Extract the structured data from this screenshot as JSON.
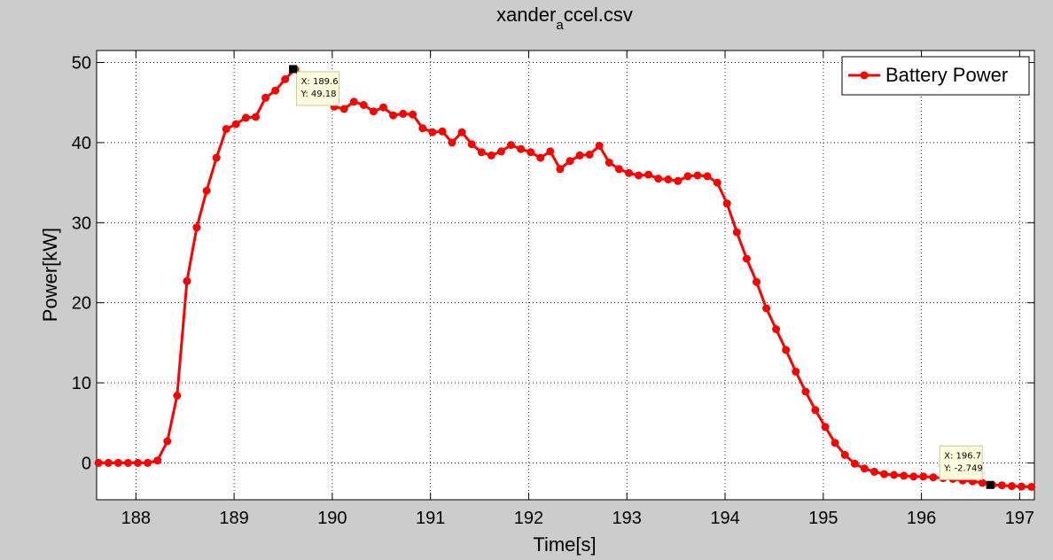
{
  "chart_data": {
    "type": "line",
    "title_main": "xander",
    "title_sub": "a",
    "title_tail": "ccel.csv",
    "xlabel": "Time[s]",
    "ylabel": "Power[kW]",
    "xlim": [
      187.6,
      197.15
    ],
    "ylim": [
      -4.6,
      51.5
    ],
    "xticks": [
      "188",
      "189",
      "190",
      "191",
      "192",
      "193",
      "194",
      "195",
      "196",
      "197"
    ],
    "yticks": [
      "0",
      "10",
      "20",
      "30",
      "40",
      "50"
    ],
    "grid": true,
    "legend_position": "top-right",
    "series": [
      {
        "name": "Battery Power",
        "color": "#ff0000",
        "x": [
          187.62,
          187.72,
          187.82,
          187.92,
          188.02,
          188.12,
          188.22,
          188.32,
          188.42,
          188.52,
          188.62,
          188.72,
          188.82,
          188.92,
          189.02,
          189.12,
          189.22,
          189.32,
          189.42,
          189.52,
          189.62,
          189.72,
          189.82,
          189.92,
          190.02,
          190.12,
          190.22,
          190.32,
          190.42,
          190.52,
          190.62,
          190.72,
          190.82,
          190.92,
          191.02,
          191.12,
          191.22,
          191.32,
          191.42,
          191.52,
          191.62,
          191.72,
          191.82,
          191.92,
          192.02,
          192.12,
          192.22,
          192.32,
          192.42,
          192.52,
          192.62,
          192.72,
          192.82,
          192.92,
          193.02,
          193.12,
          193.22,
          193.32,
          193.42,
          193.52,
          193.62,
          193.72,
          193.82,
          193.92,
          194.02,
          194.12,
          194.22,
          194.32,
          194.42,
          194.52,
          194.62,
          194.72,
          194.82,
          194.92,
          195.02,
          195.12,
          195.22,
          195.32,
          195.42,
          195.52,
          195.62,
          195.72,
          195.82,
          195.92,
          196.02,
          196.12,
          196.22,
          196.32,
          196.42,
          196.52,
          196.62,
          196.72,
          196.82,
          196.92,
          197.02,
          197.12
        ],
        "y": [
          0,
          0,
          0,
          0,
          0,
          0,
          0.3,
          2.7,
          8.4,
          22.7,
          29.4,
          34,
          38.1,
          41.7,
          42.3,
          43.1,
          43.2,
          45.6,
          46.5,
          47.9,
          49.18,
          48.2,
          46.8,
          45.5,
          44.5,
          44.2,
          45.1,
          44.7,
          43.9,
          44.4,
          43.4,
          43.6,
          43.5,
          41.8,
          41.3,
          41.4,
          40,
          41.3,
          39.8,
          38.8,
          38.4,
          38.9,
          39.7,
          39.2,
          38.8,
          38.1,
          38.9,
          36.7,
          37.7,
          38.4,
          38.5,
          39.6,
          37.5,
          36.7,
          36.2,
          35.9,
          36,
          35.5,
          35.4,
          35.2,
          35.8,
          35.9,
          35.8,
          35,
          32.4,
          28.8,
          25.5,
          22.6,
          19.3,
          16.7,
          14.1,
          11.4,
          8.9,
          6.6,
          4.5,
          2.5,
          1,
          -0.1,
          -0.7,
          -1.1,
          -1.4,
          -1.5,
          -1.6,
          -1.7,
          -1.7,
          -1.8,
          -1.9,
          -2,
          -2.2,
          -2.3,
          -2.5,
          -2.749,
          -2.8,
          -2.9,
          -2.95,
          -3
        ]
      }
    ],
    "datatips": [
      {
        "x": 189.6,
        "y": 49.18,
        "line1": "X: 189.6",
        "line2": "Y: 49.18",
        "placement": "below-right"
      },
      {
        "x": 196.7,
        "y": -2.749,
        "line1": "X: 196.7",
        "line2": "Y: -2.749",
        "placement": "above-left"
      }
    ]
  }
}
